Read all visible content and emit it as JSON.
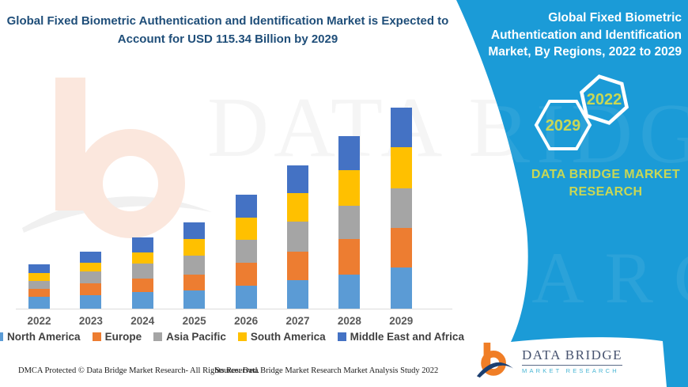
{
  "page": {
    "left_title": "Global Fixed Biometric Authentication and Identification Market is Expected to Account for USD 115.34 Billion by 2029",
    "right_title": "Global Fixed Biometric Authentication and Identification Market, By Regions, 2022 to 2029",
    "hexagon_front_year": "2029",
    "hexagon_back_year": "2022",
    "brand_panel_text": "DATA BRIDGE MARKET RESEARCH",
    "watermark_text": "DATA BRIDGE",
    "footer_left": "DMCA Protected © Data Bridge Market Research- All Rights Reserved.",
    "footer_right": "Source: Data Bridge Market Research Market Analysis Study 2022",
    "logo_name": "DATA BRIDGE",
    "logo_subtitle": "MARKET RESEARCH"
  },
  "colors": {
    "panel_blue": "#1B9BD7",
    "title_navy": "#1F4E79",
    "hex_text_green": "#C8D755",
    "legend_text": "#404040",
    "year_text": "#595959",
    "axis_line": "#DCDCDC",
    "logo_orange": "#F07E26",
    "logo_navy": "#1B3E6F",
    "logo_teal": "#49B6D4"
  },
  "chart_data": {
    "type": "bar",
    "stacked": true,
    "title": "Global Fixed Biometric Authentication and Identification Market, By Regions, 2022 to 2029",
    "unit": "USD Billion",
    "xlabel": "",
    "ylabel": "",
    "grid": false,
    "y_axis_visible": false,
    "legend_position": "bottom",
    "categories": [
      "2022",
      "2023",
      "2024",
      "2025",
      "2026",
      "2027",
      "2028",
      "2029"
    ],
    "series": [
      {
        "name": "North America",
        "color": "#5B9BD5",
        "values": [
          6.8,
          7.7,
          9.5,
          10.4,
          13.2,
          16.3,
          19.5,
          23.6
        ]
      },
      {
        "name": "Europe",
        "color": "#ED7D31",
        "values": [
          4.5,
          6.8,
          7.7,
          9.1,
          13.2,
          16.3,
          20.4,
          22.7
        ]
      },
      {
        "name": "Asia Pacific",
        "color": "#A5A5A5",
        "values": [
          4.5,
          6.8,
          8.6,
          10.9,
          13.2,
          17.3,
          19.1,
          22.7
        ]
      },
      {
        "name": "South America",
        "color": "#FFC000",
        "values": [
          4.5,
          5.0,
          6.4,
          9.5,
          12.7,
          16.3,
          20.4,
          23.6
        ]
      },
      {
        "name": "Middle East and Africa",
        "color": "#4472C4",
        "values": [
          5.0,
          6.4,
          8.6,
          9.5,
          13.2,
          16.3,
          19.5,
          22.7
        ]
      }
    ],
    "totals_usd_billion": [
      25.3,
      32.7,
      40.8,
      49.4,
      65.5,
      82.5,
      98.9,
      115.34
    ],
    "highlight_value": "USD 115.34 Billion by 2029"
  }
}
